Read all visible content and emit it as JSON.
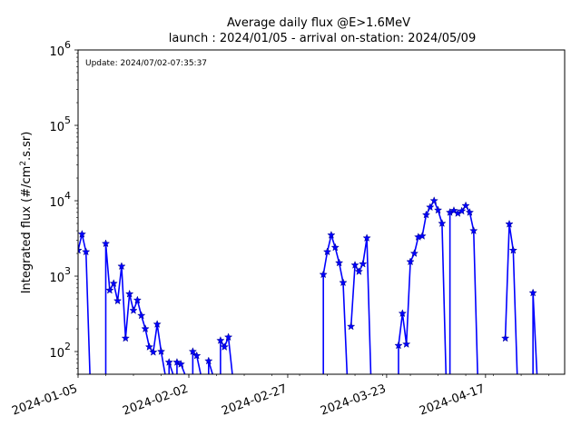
{
  "chart_data": {
    "type": "line",
    "title_line1": "Average daily flux @E>1.6MeV",
    "title_line2": "launch : 2024/01/05 - arrival on-station: 2024/05/09",
    "update_text": "Update: 2024/07/02-07:35:37",
    "ylabel_prefix": "Integrated flux (#/cm",
    "ylabel_sup": "2",
    "ylabel_suffix": ".s.sr)",
    "y_scale": "log",
    "ylim": [
      50,
      1000000
    ],
    "xlim": [
      "2024-01-05",
      "2024-05-07"
    ],
    "x_ticks": [
      "2024-01-05",
      "2024-02-02",
      "2024-02-27",
      "2024-03-23",
      "2024-04-17"
    ],
    "y_ticks": [
      100,
      1000,
      10000,
      100000,
      1000000
    ],
    "y_tick_labels": [
      {
        "base": "10",
        "exp": "2"
      },
      {
        "base": "10",
        "exp": "3"
      },
      {
        "base": "10",
        "exp": "4"
      },
      {
        "base": "10",
        "exp": "5"
      },
      {
        "base": "10",
        "exp": "6"
      }
    ],
    "color": "#0000ff",
    "marker": "star",
    "series": [
      {
        "points": [
          [
            "2024-01-05",
            2200
          ],
          [
            "2024-01-06",
            3600
          ],
          [
            "2024-01-07",
            2100
          ],
          [
            "2024-01-08",
            50
          ]
        ]
      },
      {
        "points": [
          [
            "2024-01-12",
            50
          ],
          [
            "2024-01-12",
            2700
          ],
          [
            "2024-01-13",
            650
          ],
          [
            "2024-01-14",
            800
          ],
          [
            "2024-01-15",
            470
          ],
          [
            "2024-01-16",
            1350
          ],
          [
            "2024-01-17",
            150
          ],
          [
            "2024-01-18",
            580
          ],
          [
            "2024-01-19",
            350
          ],
          [
            "2024-01-20",
            480
          ],
          [
            "2024-01-21",
            300
          ],
          [
            "2024-01-22",
            200
          ],
          [
            "2024-01-23",
            115
          ],
          [
            "2024-01-24",
            98
          ],
          [
            "2024-01-25",
            230
          ],
          [
            "2024-01-26",
            100
          ],
          [
            "2024-01-27",
            50
          ]
        ]
      },
      {
        "points": [
          [
            "2024-01-28",
            50
          ],
          [
            "2024-01-28",
            72
          ],
          [
            "2024-01-29",
            50
          ]
        ]
      },
      {
        "points": [
          [
            "2024-01-30",
            50
          ],
          [
            "2024-01-30",
            72
          ],
          [
            "2024-01-31",
            68
          ],
          [
            "2024-02-01",
            50
          ]
        ]
      },
      {
        "points": [
          [
            "2024-02-03",
            50
          ],
          [
            "2024-02-03",
            100
          ],
          [
            "2024-02-04",
            88
          ],
          [
            "2024-02-05",
            50
          ]
        ]
      },
      {
        "points": [
          [
            "2024-02-07",
            50
          ],
          [
            "2024-02-07",
            75
          ],
          [
            "2024-02-08",
            50
          ]
        ]
      },
      {
        "points": [
          [
            "2024-02-10",
            50
          ],
          [
            "2024-02-10",
            140
          ],
          [
            "2024-02-11",
            115
          ],
          [
            "2024-02-12",
            155
          ],
          [
            "2024-02-13",
            50
          ]
        ]
      },
      {
        "points": [
          [
            "2024-03-07",
            50
          ],
          [
            "2024-03-07",
            1050
          ],
          [
            "2024-03-08",
            2100
          ],
          [
            "2024-03-09",
            3500
          ],
          [
            "2024-03-10",
            2400
          ],
          [
            "2024-03-11",
            1500
          ],
          [
            "2024-03-12",
            820
          ],
          [
            "2024-03-13",
            50
          ]
        ]
      },
      {
        "points": [
          [
            "2024-03-14",
            215
          ],
          [
            "2024-03-15",
            1400
          ],
          [
            "2024-03-16",
            1150
          ],
          [
            "2024-03-17",
            1450
          ],
          [
            "2024-03-18",
            3200
          ],
          [
            "2024-03-19",
            50
          ]
        ]
      },
      {
        "points": [
          [
            "2024-03-26",
            50
          ],
          [
            "2024-03-26",
            120
          ],
          [
            "2024-03-27",
            320
          ],
          [
            "2024-03-28",
            125
          ],
          [
            "2024-03-29",
            1550
          ],
          [
            "2024-03-30",
            2000
          ],
          [
            "2024-03-31",
            3300
          ],
          [
            "2024-04-01",
            3400
          ],
          [
            "2024-04-02",
            6500
          ],
          [
            "2024-04-03",
            8200
          ],
          [
            "2024-04-04",
            10000
          ],
          [
            "2024-04-05",
            7500
          ],
          [
            "2024-04-06",
            5000
          ],
          [
            "2024-04-07",
            50
          ]
        ]
      },
      {
        "points": [
          [
            "2024-04-08",
            50
          ],
          [
            "2024-04-08",
            7000
          ],
          [
            "2024-04-09",
            7400
          ],
          [
            "2024-04-10",
            6800
          ],
          [
            "2024-04-11",
            7300
          ],
          [
            "2024-04-12",
            8600
          ],
          [
            "2024-04-13",
            7000
          ],
          [
            "2024-04-14",
            4000
          ],
          [
            "2024-04-15",
            50
          ]
        ]
      },
      {
        "points": [
          [
            "2024-04-22",
            150
          ],
          [
            "2024-04-23",
            4900
          ],
          [
            "2024-04-24",
            2200
          ],
          [
            "2024-04-25",
            50
          ]
        ]
      },
      {
        "points": [
          [
            "2024-04-29",
            50
          ],
          [
            "2024-04-29",
            600
          ],
          [
            "2024-04-30",
            50
          ]
        ]
      }
    ]
  }
}
